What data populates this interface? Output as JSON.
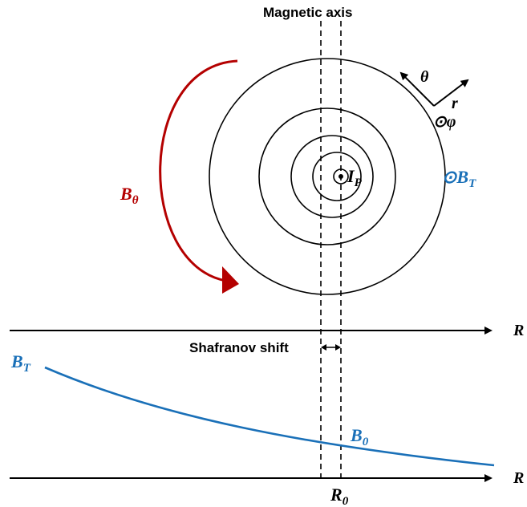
{
  "labels": {
    "magnetic_axis": "Magnetic axis",
    "shafranov_shift": "Shafranov shift",
    "b_theta_main": "B",
    "b_theta_sub": "θ",
    "theta": "θ",
    "r": "r",
    "phi_symbol": "⊙φ",
    "bt_circ_main": "⊙B",
    "bt_circ_sub": "T",
    "ip_main": "I",
    "ip_sub": "P",
    "axis_R_top": "R",
    "axis_R_bottom": "R",
    "bt_curve_main": "B",
    "bt_curve_sub": "T",
    "b0_main": "B",
    "b0_sub": "0",
    "r0_main": "R",
    "r0_sub": "0"
  },
  "colors": {
    "red": "#b40000",
    "blue": "#1a70b8",
    "black": "#000000"
  }
}
